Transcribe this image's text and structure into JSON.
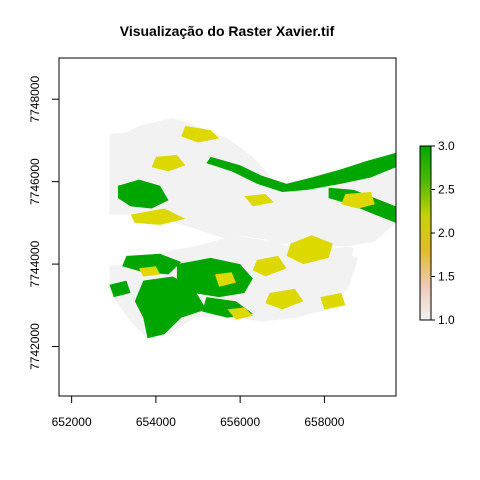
{
  "chart_data": {
    "type": "heatmap",
    "title": "Visualização do Raster Xavier.tif",
    "xlabel": "",
    "ylabel": "",
    "xlim": [
      651700,
      659700
    ],
    "ylim": [
      7740800,
      7749000
    ],
    "x_ticks": [
      652000,
      654000,
      656000,
      658000
    ],
    "x_tick_labels": [
      "652000",
      "654000",
      "656000",
      "658000"
    ],
    "y_ticks": [
      7742000,
      7744000,
      7746000,
      7748000
    ],
    "y_tick_labels": [
      "7742000",
      "7744000",
      "7746000",
      "7748000"
    ],
    "grid": false,
    "legend": {
      "position": "right",
      "min": 1.0,
      "max": 3.0,
      "ticks": [
        1.0,
        1.5,
        2.0,
        2.5,
        3.0
      ],
      "tick_labels": [
        "1.0",
        "1.5",
        "2.0",
        "2.5",
        "3.0"
      ],
      "colors": [
        "#f2f2f2",
        "#eec9b6",
        "#e0bd27",
        "#c5d300",
        "#4fb800",
        "#00a600"
      ]
    },
    "classes": [
      {
        "value": 1,
        "color": "#f2f2f2"
      },
      {
        "value": 2,
        "color": "#dcd800"
      },
      {
        "value": 3,
        "color": "#00a600"
      }
    ],
    "regions": [
      {
        "class": 1,
        "polygon": [
          [
            652900,
            7747150
          ],
          [
            653300,
            7747200
          ],
          [
            653600,
            7747350
          ],
          [
            654400,
            7747550
          ],
          [
            655100,
            7747300
          ],
          [
            655700,
            7747050
          ],
          [
            656300,
            7746600
          ],
          [
            656800,
            7746050
          ],
          [
            657100,
            7745900
          ],
          [
            657700,
            7746150
          ],
          [
            658500,
            7746300
          ],
          [
            659000,
            7746450
          ],
          [
            659600,
            7746600
          ],
          [
            659700,
            7746200
          ],
          [
            659700,
            7745000
          ],
          [
            659200,
            7744550
          ],
          [
            658400,
            7744400
          ],
          [
            657300,
            7744300
          ],
          [
            656600,
            7744600
          ],
          [
            655900,
            7744700
          ],
          [
            655100,
            7744400
          ],
          [
            654400,
            7744300
          ],
          [
            653700,
            7744000
          ],
          [
            653100,
            7743800
          ],
          [
            652900,
            7743600
          ],
          [
            652900,
            7743300
          ],
          [
            653200,
            7742900
          ],
          [
            653800,
            7742200
          ],
          [
            654300,
            7742300
          ],
          [
            654900,
            7742700
          ],
          [
            655700,
            7742750
          ],
          [
            656500,
            7742600
          ],
          [
            657300,
            7742700
          ],
          [
            658100,
            7742900
          ],
          [
            658500,
            7743500
          ],
          [
            658700,
            7744400
          ],
          [
            657800,
            7744500
          ],
          [
            656800,
            7744500
          ],
          [
            655700,
            7744600
          ],
          [
            654800,
            7744900
          ],
          [
            654100,
            7745100
          ],
          [
            653500,
            7745200
          ],
          [
            652900,
            7745200
          ]
        ]
      },
      {
        "class": 1,
        "polygon": [
          [
            652900,
            7743950
          ],
          [
            653500,
            7744050
          ],
          [
            654200,
            7744300
          ],
          [
            655000,
            7744450
          ],
          [
            655900,
            7744700
          ],
          [
            656700,
            7744550
          ],
          [
            657500,
            7744350
          ],
          [
            658300,
            7744300
          ],
          [
            658800,
            7744150
          ],
          [
            658600,
            7743500
          ],
          [
            658200,
            7742950
          ],
          [
            657400,
            7742750
          ],
          [
            656600,
            7742650
          ],
          [
            655800,
            7742750
          ],
          [
            655000,
            7742750
          ],
          [
            654400,
            7742350
          ],
          [
            653800,
            7742200
          ],
          [
            653400,
            7742600
          ],
          [
            653000,
            7743200
          ],
          [
            652900,
            7743600
          ]
        ]
      },
      {
        "class": 3,
        "polygon": [
          [
            655300,
            7746600
          ],
          [
            656000,
            7746400
          ],
          [
            656500,
            7746150
          ],
          [
            657100,
            7745950
          ],
          [
            657700,
            7746100
          ],
          [
            658400,
            7746300
          ],
          [
            659000,
            7746500
          ],
          [
            659700,
            7746700
          ],
          [
            659700,
            7746350
          ],
          [
            659100,
            7746100
          ],
          [
            658400,
            7745950
          ],
          [
            657600,
            7745800
          ],
          [
            657000,
            7745750
          ],
          [
            656400,
            7745950
          ],
          [
            655800,
            7746250
          ],
          [
            655200,
            7746450
          ]
        ]
      },
      {
        "class": 3,
        "polygon": [
          [
            658100,
            7745850
          ],
          [
            658700,
            7745800
          ],
          [
            659200,
            7745600
          ],
          [
            659700,
            7745400
          ],
          [
            659700,
            7745000
          ],
          [
            659200,
            7745200
          ],
          [
            658600,
            7745450
          ],
          [
            658100,
            7745600
          ]
        ]
      },
      {
        "class": 3,
        "polygon": [
          [
            653100,
            7745900
          ],
          [
            653600,
            7746050
          ],
          [
            654100,
            7745900
          ],
          [
            654300,
            7745550
          ],
          [
            653900,
            7745350
          ],
          [
            653400,
            7745400
          ],
          [
            653100,
            7745600
          ]
        ]
      },
      {
        "class": 3,
        "polygon": [
          [
            654500,
            7744000
          ],
          [
            655300,
            7744150
          ],
          [
            656000,
            7744000
          ],
          [
            656300,
            7743650
          ],
          [
            656100,
            7743300
          ],
          [
            655500,
            7743200
          ],
          [
            654900,
            7743300
          ],
          [
            654500,
            7743600
          ]
        ]
      },
      {
        "class": 3,
        "polygon": [
          [
            653300,
            7744200
          ],
          [
            654100,
            7744250
          ],
          [
            654600,
            7744050
          ],
          [
            654300,
            7743750
          ],
          [
            653700,
            7743800
          ],
          [
            653200,
            7743950
          ]
        ]
      },
      {
        "class": 3,
        "polygon": [
          [
            653700,
            7743600
          ],
          [
            654400,
            7743700
          ],
          [
            654900,
            7743400
          ],
          [
            655200,
            7742900
          ],
          [
            654600,
            7742700
          ],
          [
            654200,
            7742300
          ],
          [
            653800,
            7742200
          ],
          [
            653700,
            7742700
          ],
          [
            653500,
            7743100
          ]
        ]
      },
      {
        "class": 3,
        "polygon": [
          [
            655200,
            7743200
          ],
          [
            655900,
            7743100
          ],
          [
            656300,
            7742800
          ],
          [
            655700,
            7742700
          ],
          [
            655100,
            7742850
          ]
        ]
      },
      {
        "class": 3,
        "polygon": [
          [
            652900,
            7743500
          ],
          [
            653300,
            7743600
          ],
          [
            653400,
            7743300
          ],
          [
            653000,
            7743200
          ]
        ]
      },
      {
        "class": 2,
        "polygon": [
          [
            654700,
            7747350
          ],
          [
            655300,
            7747250
          ],
          [
            655500,
            7747050
          ],
          [
            655000,
            7746950
          ],
          [
            654600,
            7747100
          ]
        ]
      },
      {
        "class": 2,
        "polygon": [
          [
            654000,
            7746600
          ],
          [
            654500,
            7746650
          ],
          [
            654700,
            7746400
          ],
          [
            654300,
            7746250
          ],
          [
            653900,
            7746350
          ]
        ]
      },
      {
        "class": 2,
        "polygon": [
          [
            653400,
            7745200
          ],
          [
            654200,
            7745350
          ],
          [
            654700,
            7745100
          ],
          [
            654100,
            7744950
          ],
          [
            653500,
            7745000
          ]
        ]
      },
      {
        "class": 2,
        "polygon": [
          [
            656100,
            7745650
          ],
          [
            656600,
            7745700
          ],
          [
            656800,
            7745500
          ],
          [
            656300,
            7745400
          ]
        ]
      },
      {
        "class": 2,
        "polygon": [
          [
            658500,
            7745700
          ],
          [
            659100,
            7745750
          ],
          [
            659200,
            7745450
          ],
          [
            658800,
            7745350
          ],
          [
            658400,
            7745450
          ]
        ]
      },
      {
        "class": 2,
        "polygon": [
          [
            657200,
            7744500
          ],
          [
            657700,
            7744700
          ],
          [
            658200,
            7744500
          ],
          [
            658100,
            7744150
          ],
          [
            657500,
            7744000
          ],
          [
            657100,
            7744200
          ]
        ]
      },
      {
        "class": 2,
        "polygon": [
          [
            656400,
            7744100
          ],
          [
            656900,
            7744200
          ],
          [
            657100,
            7743900
          ],
          [
            656600,
            7743700
          ],
          [
            656300,
            7743850
          ]
        ]
      },
      {
        "class": 2,
        "polygon": [
          [
            656700,
            7743300
          ],
          [
            657300,
            7743400
          ],
          [
            657500,
            7743100
          ],
          [
            657000,
            7742900
          ],
          [
            656600,
            7743050
          ]
        ]
      },
      {
        "class": 2,
        "polygon": [
          [
            657900,
            7743200
          ],
          [
            658400,
            7743300
          ],
          [
            658500,
            7743000
          ],
          [
            658000,
            7742900
          ]
        ]
      },
      {
        "class": 2,
        "polygon": [
          [
            655700,
            7742900
          ],
          [
            656100,
            7742950
          ],
          [
            656300,
            7742750
          ],
          [
            655900,
            7742650
          ]
        ]
      },
      {
        "class": 2,
        "polygon": [
          [
            653600,
            7743900
          ],
          [
            654000,
            7743950
          ],
          [
            654100,
            7743750
          ],
          [
            653700,
            7743700
          ]
        ]
      },
      {
        "class": 2,
        "polygon": [
          [
            655400,
            7743750
          ],
          [
            655800,
            7743800
          ],
          [
            655900,
            7743550
          ],
          [
            655500,
            7743450
          ]
        ]
      }
    ]
  }
}
